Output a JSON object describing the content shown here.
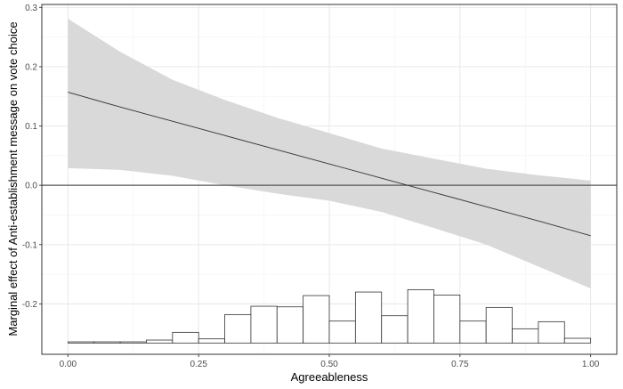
{
  "chart_data": {
    "type": "line",
    "title": "",
    "xlabel": "Agreeableness",
    "ylabel": "Marginal effect of Anti-establishment message on vote choice",
    "xlim": [
      -0.05,
      1.05
    ],
    "ylim": [
      -0.285,
      0.305
    ],
    "x_ticks": [
      0.0,
      0.25,
      0.5,
      0.75,
      1.0
    ],
    "x_tick_labels": [
      "0.00",
      "0.25",
      "0.50",
      "0.75",
      "1.00"
    ],
    "y_ticks": [
      -0.2,
      -0.1,
      0.0,
      0.1,
      0.2,
      0.3
    ],
    "y_tick_labels": [
      "-0.2",
      "-0.1",
      "0.0",
      "0.1",
      "0.2",
      "0.3"
    ],
    "grid": true,
    "legend": "none",
    "reference_line": {
      "y": 0.0,
      "color": "#555555"
    },
    "series": [
      {
        "x": [
          0.0,
          0.1,
          0.2,
          0.3,
          0.4,
          0.5,
          0.6,
          0.7,
          0.8,
          0.9,
          1.0
        ],
        "values": [
          0.157,
          0.132,
          0.108,
          0.084,
          0.06,
          0.036,
          0.012,
          -0.012,
          -0.036,
          -0.06,
          -0.085
        ],
        "color": "#333333"
      }
    ],
    "confidence_band": {
      "x": [
        0.0,
        0.1,
        0.2,
        0.3,
        0.4,
        0.5,
        0.6,
        0.7,
        0.8,
        0.9,
        1.0
      ],
      "lower": [
        0.029,
        0.026,
        0.016,
        0.0,
        -0.014,
        -0.026,
        -0.045,
        -0.072,
        -0.1,
        -0.137,
        -0.174
      ],
      "upper": [
        0.281,
        0.225,
        0.178,
        0.144,
        0.114,
        0.088,
        0.062,
        0.045,
        0.028,
        0.017,
        0.008
      ],
      "color": "#d9d9d9"
    },
    "histogram": {
      "baseline": -0.266,
      "bin_width": 0.05,
      "bin_start": [
        0.0,
        0.05,
        0.1,
        0.15,
        0.2,
        0.25,
        0.3,
        0.35,
        0.4,
        0.45,
        0.5,
        0.55,
        0.6,
        0.65,
        0.7,
        0.75,
        0.8,
        0.85,
        0.9,
        0.95
      ],
      "top": [
        -0.264,
        -0.264,
        -0.264,
        -0.261,
        -0.248,
        -0.259,
        -0.218,
        -0.204,
        -0.205,
        -0.186,
        -0.229,
        -0.18,
        -0.22,
        -0.176,
        -0.185,
        -0.229,
        -0.206,
        -0.242,
        -0.23,
        -0.258
      ]
    }
  }
}
